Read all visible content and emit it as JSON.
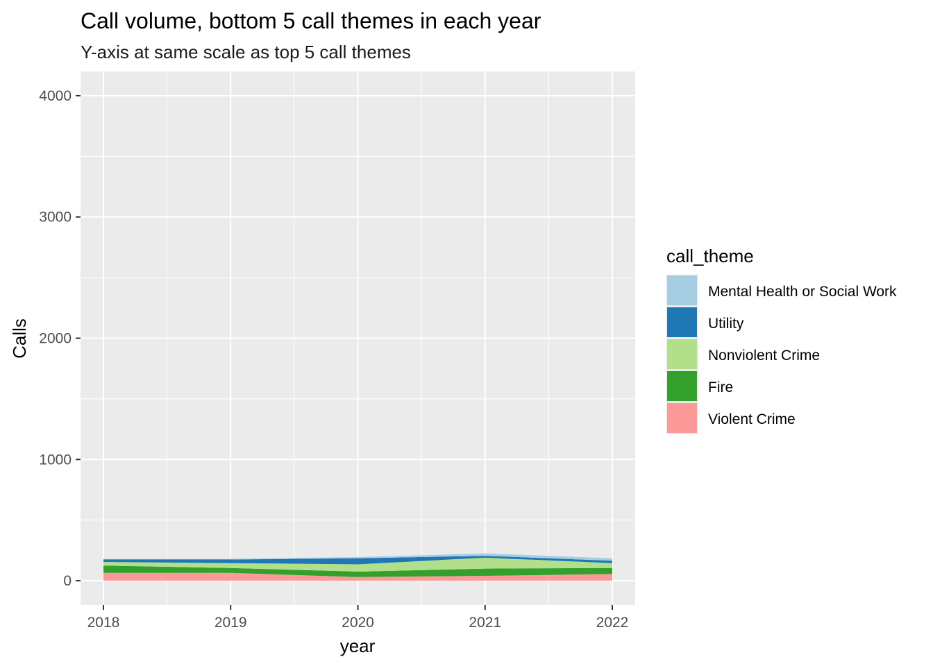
{
  "chart_data": {
    "type": "area",
    "stacked": true,
    "title": "Call volume, bottom 5 call themes in each year",
    "subtitle": "Y-axis at same scale as top 5 call themes",
    "xlabel": "year",
    "ylabel": "Calls",
    "x": [
      2018,
      2019,
      2020,
      2021,
      2022
    ],
    "xlim": [
      2017.82,
      2022.18
    ],
    "ylim": [
      -200,
      4200
    ],
    "y_ticks": [
      0,
      1000,
      2000,
      3000,
      4000
    ],
    "y_tick_labels": [
      "0",
      "1000",
      "2000",
      "3000",
      "4000"
    ],
    "x_ticks": [
      2018,
      2019,
      2020,
      2021,
      2022
    ],
    "x_tick_labels": [
      "2018",
      "2019",
      "2020",
      "2021",
      "2022"
    ],
    "grid": true,
    "legend_title": "call_theme",
    "legend_position": "right",
    "series": [
      {
        "name": "Violent Crime",
        "color": "#fb9a99",
        "values": [
          65,
          65,
          30,
          40,
          55
        ]
      },
      {
        "name": "Fire",
        "color": "#33a02c",
        "values": [
          60,
          40,
          45,
          60,
          50
        ]
      },
      {
        "name": "Nonviolent Crime",
        "color": "#b2df8a",
        "values": [
          30,
          40,
          60,
          90,
          40
        ]
      },
      {
        "name": "Utility",
        "color": "#1f78b4",
        "values": [
          20,
          30,
          50,
          15,
          20
        ]
      },
      {
        "name": "Mental Health or Social Work",
        "color": "#a6cee3",
        "values": [
          5,
          5,
          10,
          20,
          20
        ]
      }
    ],
    "legend_order": [
      "Mental Health or Social Work",
      "Utility",
      "Nonviolent Crime",
      "Fire",
      "Violent Crime"
    ]
  }
}
